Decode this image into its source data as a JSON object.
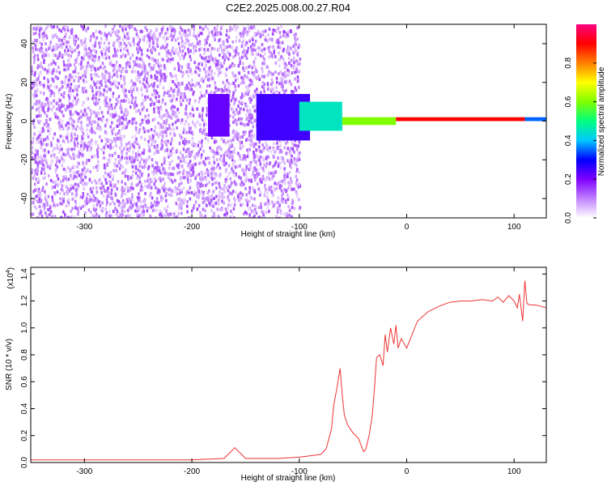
{
  "title": "C2E2.2025.008.00.27.R04",
  "chart_data": [
    {
      "type": "heatmap",
      "xlabel": "Height of straight line (km)",
      "ylabel": "Frequency (Hz)",
      "xlim": [
        -350,
        130
      ],
      "ylim": [
        -50,
        50
      ],
      "xticks": [
        -300,
        -200,
        -100,
        0,
        100
      ],
      "yticks": [
        -40,
        -20,
        0,
        20,
        40
      ],
      "colorbar": {
        "label": "Normalized spectral amplitude",
        "range": [
          0,
          1
        ],
        "ticks": [
          "0.0",
          "0.2",
          "0.4",
          "0.6",
          "0.8"
        ],
        "colormap": [
          "#ffffff",
          "#c080ff",
          "#7f00ff",
          "#0000ff",
          "#00c8ff",
          "#00ff80",
          "#80ff00",
          "#ffff00",
          "#ff8000",
          "#ff0000",
          "#ff0080"
        ]
      },
      "regions": [
        {
          "x": [
            -350,
            -100
          ],
          "freq": [
            -50,
            50
          ],
          "amplitude": 0.1,
          "pattern": "broadband noise"
        },
        {
          "x": [
            -185,
            -165
          ],
          "freq": [
            -8,
            14
          ],
          "amplitude": 0.22
        },
        {
          "x": [
            -140,
            -90
          ],
          "freq": [
            -10,
            14
          ],
          "amplitude": 0.25
        },
        {
          "x": [
            -100,
            -60
          ],
          "freq": [
            -5,
            10
          ],
          "amplitude": 0.45
        },
        {
          "x": [
            -60,
            -10
          ],
          "freq": [
            -2,
            2
          ],
          "amplitude": 0.6
        },
        {
          "x": [
            -10,
            110
          ],
          "freq": [
            0,
            2
          ],
          "amplitude": 0.9
        },
        {
          "x": [
            110,
            130
          ],
          "freq": [
            0,
            2
          ],
          "amplitude": 0.35
        }
      ]
    },
    {
      "type": "line",
      "xlabel": "Height of straight line (km)",
      "ylabel": "SNR (10 * v/v)",
      "yscale_label": "(x10",
      "yscale_exp": "4",
      "xlim": [
        -350,
        130
      ],
      "ylim": [
        0,
        1.45
      ],
      "xticks": [
        -300,
        -200,
        -100,
        0,
        100
      ],
      "yticks": [
        "0.0",
        "0.2",
        "0.4",
        "0.6",
        "0.8",
        "1.0",
        "1.2",
        "1.4"
      ],
      "color": "#ee3333",
      "series": [
        {
          "x": [
            -350,
            -300,
            -250,
            -200,
            -170,
            -160,
            -150,
            -120,
            -100,
            -90,
            -80,
            -75,
            -70,
            -68,
            -65,
            -62,
            -60,
            -58,
            -55,
            -50,
            -45,
            -42,
            -40,
            -38,
            -35,
            -32,
            -30,
            -28,
            -25,
            -22,
            -20,
            -18,
            -15,
            -12,
            -10,
            -8,
            -5,
            0,
            5,
            10,
            20,
            30,
            40,
            50,
            60,
            70,
            80,
            85,
            90,
            95,
            100,
            103,
            105,
            108,
            110,
            112,
            115,
            120,
            125,
            130
          ],
          "y": [
            0.02,
            0.02,
            0.02,
            0.02,
            0.03,
            0.11,
            0.03,
            0.03,
            0.04,
            0.05,
            0.06,
            0.1,
            0.25,
            0.42,
            0.55,
            0.7,
            0.5,
            0.35,
            0.28,
            0.22,
            0.18,
            0.12,
            0.08,
            0.1,
            0.2,
            0.35,
            0.55,
            0.78,
            0.8,
            0.72,
            0.95,
            0.82,
            1.0,
            0.88,
            1.02,
            0.85,
            0.92,
            0.85,
            0.95,
            1.05,
            1.12,
            1.16,
            1.19,
            1.2,
            1.2,
            1.21,
            1.2,
            1.23,
            1.19,
            1.24,
            1.2,
            1.15,
            1.25,
            1.05,
            1.35,
            1.18,
            1.17,
            1.17,
            1.16,
            1.15
          ]
        }
      ]
    }
  ]
}
